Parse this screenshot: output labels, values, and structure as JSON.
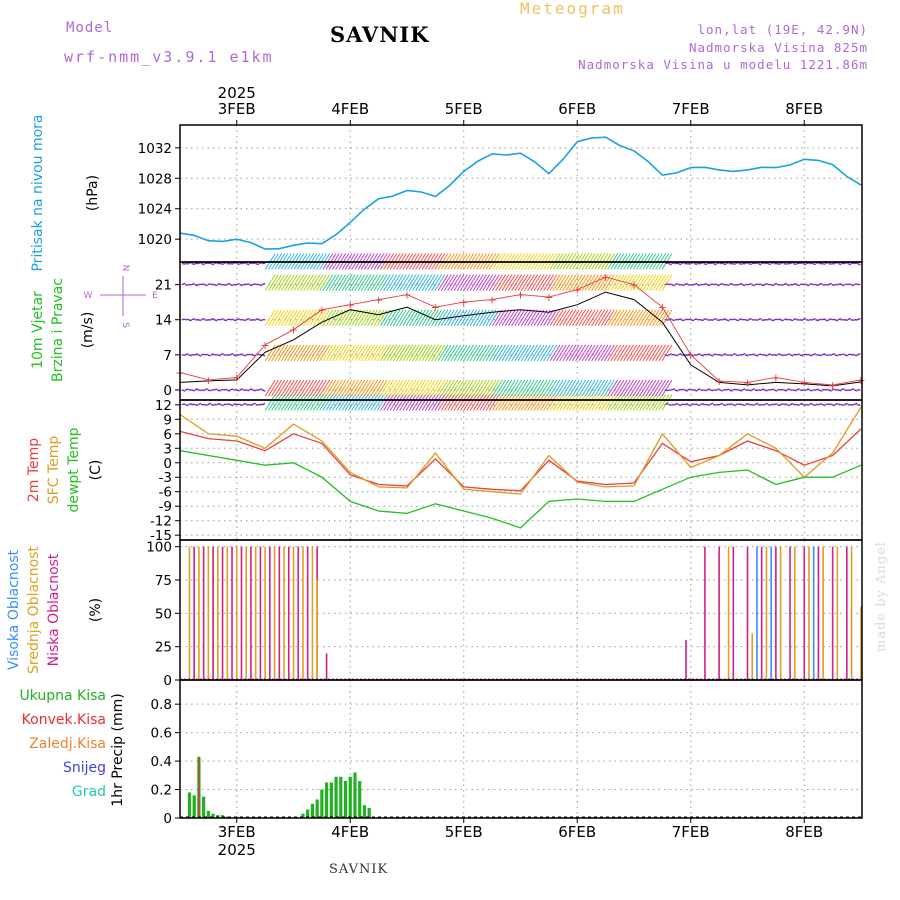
{
  "header": {
    "model_label": "Model",
    "model_name": "wrf-nmm_v3.9.1 e1km",
    "station": "SAVNIK",
    "meteogram": "Meteogram",
    "lonlat": "lon,lat (19E, 42.9N)",
    "altitude": "Nadmorska Visina 825m",
    "model_altitude": "Nadmorska Visina u modelu 1221.86m"
  },
  "footer": {
    "station": "SAVNIK",
    "credit": "made by Angel"
  },
  "colors": {
    "pressure": "#1aa0e6",
    "wind_avg": "#000000",
    "wind_gust": "#e83838",
    "temp_2m": "#e84040",
    "temp_sfc": "#e09a20",
    "dewpoint": "#22c022",
    "cloud_high": "#3c8cff",
    "cloud_mid": "#e0a020",
    "cloud_low": "#d0208a",
    "precip_total": "#22b022",
    "precip_conv": "#e83030",
    "axis_label_purple": "#b067d8"
  },
  "time_axis": {
    "year": "2025",
    "dates": [
      "3FEB",
      "4FEB",
      "5FEB",
      "6FEB",
      "7FEB",
      "8FEB"
    ]
  },
  "chart_data": [
    {
      "type": "line",
      "panel": "pressure",
      "ylabels": [
        "Pritisak na nivou mora"
      ],
      "unit": "(hPa)",
      "yticks": [
        1020,
        1024,
        1028,
        1032
      ],
      "ylim": [
        1017,
        1035
      ],
      "x": [
        "2025-02-02T12",
        "2025-02-02T18",
        "2025-02-03T00",
        "2025-02-03T06",
        "2025-02-03T12",
        "2025-02-03T18",
        "2025-02-04T00",
        "2025-02-04T06",
        "2025-02-04T12",
        "2025-02-04T18",
        "2025-02-05T00",
        "2025-02-05T06",
        "2025-02-05T12",
        "2025-02-05T18",
        "2025-02-06T00",
        "2025-02-06T06",
        "2025-02-06T12",
        "2025-02-06T18",
        "2025-02-07T00",
        "2025-02-07T06",
        "2025-02-07T12",
        "2025-02-07T18",
        "2025-02-08T00",
        "2025-02-08T06",
        "2025-02-08T12"
      ],
      "series": [
        {
          "values": [
            1020.8,
            1019.8,
            1020.0,
            1018.7,
            1019.2,
            1019.4,
            1022.2,
            1025.3,
            1026.4,
            1025.6,
            1028.9,
            1031.2,
            1031.3,
            1028.6,
            1032.8,
            1033.4,
            1031.6,
            1028.4,
            1029.4,
            1029.1,
            1029.1,
            1029.4,
            1030.5,
            1029.8,
            1027.1
          ]
        }
      ]
    },
    {
      "type": "line",
      "panel": "wind",
      "ylabels": [
        "10m Vjetar",
        "Brzina i Pravac"
      ],
      "unit": "(m/s)",
      "yticks": [
        0,
        7,
        14,
        21
      ],
      "ylim": [
        -2,
        25.5
      ],
      "compass": {
        "n": "N",
        "w": "W",
        "e": "E",
        "s": "S"
      },
      "x": [
        "2025-02-02T12",
        "2025-02-02T18",
        "2025-02-03T00",
        "2025-02-03T06",
        "2025-02-03T12",
        "2025-02-03T18",
        "2025-02-04T00",
        "2025-02-04T06",
        "2025-02-04T12",
        "2025-02-04T18",
        "2025-02-05T00",
        "2025-02-05T06",
        "2025-02-05T12",
        "2025-02-05T18",
        "2025-02-06T00",
        "2025-02-06T06",
        "2025-02-06T12",
        "2025-02-06T18",
        "2025-02-07T00",
        "2025-02-07T06",
        "2025-02-07T12",
        "2025-02-07T18",
        "2025-02-08T00",
        "2025-02-08T06",
        "2025-02-08T12"
      ],
      "series": [
        {
          "name": "avg",
          "values": [
            1.5,
            1.8,
            2.0,
            7.5,
            10.0,
            13.5,
            16.0,
            15.0,
            16.5,
            14.0,
            14.8,
            15.5,
            16.0,
            15.5,
            17.0,
            19.5,
            18.0,
            13.5,
            5.0,
            1.5,
            1.0,
            1.5,
            1.2,
            0.8,
            1.6
          ]
        },
        {
          "name": "gust",
          "values": [
            3.5,
            2.0,
            2.5,
            9.0,
            12.0,
            16.0,
            17.0,
            18.0,
            19.0,
            16.5,
            17.5,
            18.0,
            19.0,
            18.5,
            20.0,
            22.5,
            21.0,
            16.5,
            7.0,
            1.8,
            1.5,
            2.5,
            1.5,
            1.0,
            2.0
          ]
        }
      ]
    },
    {
      "type": "line",
      "panel": "temperature",
      "ylabels": [
        "2m Temp",
        "SFC Temp",
        "dewpt Temp"
      ],
      "unit": "(C)",
      "yticks": [
        -15,
        -12,
        -9,
        -6,
        -3,
        0,
        3,
        6,
        9,
        12
      ],
      "ylim": [
        -16,
        13
      ],
      "x": [
        "2025-02-02T12",
        "2025-02-02T18",
        "2025-02-03T00",
        "2025-02-03T06",
        "2025-02-03T12",
        "2025-02-03T18",
        "2025-02-04T00",
        "2025-02-04T06",
        "2025-02-04T12",
        "2025-02-04T18",
        "2025-02-05T00",
        "2025-02-05T06",
        "2025-02-05T12",
        "2025-02-05T18",
        "2025-02-06T00",
        "2025-02-06T06",
        "2025-02-06T12",
        "2025-02-06T18",
        "2025-02-07T00",
        "2025-02-07T06",
        "2025-02-07T12",
        "2025-02-07T18",
        "2025-02-08T00",
        "2025-02-08T06",
        "2025-02-08T12"
      ],
      "series": [
        {
          "name": "2m Temp",
          "values": [
            6.5,
            5.0,
            4.5,
            2.5,
            6.0,
            4.0,
            -2.5,
            -4.5,
            -4.8,
            0.8,
            -5.0,
            -5.5,
            -5.8,
            0.5,
            -3.8,
            -4.5,
            -4.2,
            4.0,
            0.2,
            1.5,
            4.5,
            2.5,
            -0.5,
            1.5,
            7.0
          ]
        },
        {
          "name": "SFC Temp",
          "values": [
            10.0,
            6.0,
            5.5,
            3.0,
            8.0,
            4.5,
            -2.0,
            -5.0,
            -5.2,
            2.0,
            -5.5,
            -6.0,
            -6.5,
            1.5,
            -4.0,
            -5.0,
            -4.8,
            6.0,
            -1.0,
            1.5,
            6.0,
            3.0,
            -3.0,
            2.0,
            11.5
          ]
        },
        {
          "name": "dewpt Temp",
          "values": [
            2.5,
            1.5,
            0.5,
            -0.5,
            0.0,
            -3.0,
            -8.0,
            -10.0,
            -10.5,
            -8.5,
            -10.0,
            -11.5,
            -13.5,
            -8.0,
            -7.5,
            -8.0,
            -8.0,
            -5.5,
            -3.0,
            -2.0,
            -1.5,
            -4.5,
            -3.0,
            -3.0,
            -0.5
          ]
        }
      ]
    },
    {
      "type": "bar",
      "panel": "clouds",
      "ylabels": [
        "Visoka Oblacnost",
        "Srednja Oblacnost",
        "Niska Oblacnost"
      ],
      "unit": "(%)",
      "yticks": [
        0,
        25,
        50,
        75,
        100
      ],
      "ylim": [
        0,
        105
      ],
      "series": [
        {
          "name": "Niska Oblacnost",
          "x": [
            "2025-02-02T15",
            "2025-02-02T17",
            "2025-02-02T19",
            "2025-02-02T21",
            "2025-02-02T23",
            "2025-02-03T01",
            "2025-02-03T03",
            "2025-02-03T05",
            "2025-02-03T07",
            "2025-02-03T09",
            "2025-02-03T11",
            "2025-02-03T13",
            "2025-02-03T15",
            "2025-02-03T17",
            "2025-02-03T19",
            "2025-02-06T23",
            "2025-02-07T03",
            "2025-02-07T06",
            "2025-02-07T09",
            "2025-02-07T12",
            "2025-02-07T15",
            "2025-02-07T18",
            "2025-02-07T21",
            "2025-02-08T00",
            "2025-02-08T03",
            "2025-02-08T06",
            "2025-02-08T09"
          ],
          "values": [
            100,
            100,
            100,
            100,
            100,
            100,
            100,
            100,
            100,
            100,
            100,
            100,
            100,
            100,
            20,
            30,
            100,
            100,
            100,
            100,
            100,
            100,
            100,
            100,
            100,
            100,
            100
          ]
        },
        {
          "name": "Srednja Oblacnost",
          "x": [
            "2025-02-02T14",
            "2025-02-02T16",
            "2025-02-02T18",
            "2025-02-02T20",
            "2025-02-02T22",
            "2025-02-03T00",
            "2025-02-03T02",
            "2025-02-03T04",
            "2025-02-03T06",
            "2025-02-03T08",
            "2025-02-03T10",
            "2025-02-03T12",
            "2025-02-03T14",
            "2025-02-03T16",
            "2025-02-03T17",
            "2025-02-07T08",
            "2025-02-07T13",
            "2025-02-07T16",
            "2025-02-07T19",
            "2025-02-07T22",
            "2025-02-08T01",
            "2025-02-08T04",
            "2025-02-08T07",
            "2025-02-08T10",
            "2025-02-08T12"
          ],
          "values": [
            100,
            100,
            100,
            100,
            100,
            100,
            100,
            100,
            100,
            100,
            100,
            100,
            100,
            100,
            75,
            100,
            35,
            100,
            100,
            100,
            100,
            100,
            100,
            100,
            55
          ]
        },
        {
          "name": "Visoka Oblacnost",
          "x": [
            "2025-02-07T14",
            "2025-02-07T17",
            "2025-02-08T02"
          ],
          "values": [
            100,
            100,
            100
          ]
        }
      ]
    },
    {
      "type": "bar",
      "panel": "precip",
      "ylabels": [
        "1hr Precip (mm)"
      ],
      "unit": "",
      "legend": [
        "Ukupna Kisa",
        "Konvek.Kisa",
        "Zaledj.Kisa",
        "Snijeg",
        "Grad"
      ],
      "yticks": [
        0,
        0.2,
        0.4,
        0.6,
        0.8
      ],
      "ylim": [
        0,
        0.97
      ],
      "series": [
        {
          "name": "Ukupna Kisa",
          "x": [
            "2025-02-02T14",
            "2025-02-02T15",
            "2025-02-02T16",
            "2025-02-02T17",
            "2025-02-02T18",
            "2025-02-02T19",
            "2025-02-02T20",
            "2025-02-02T21",
            "2025-02-02T22",
            "2025-02-03T00",
            "2025-02-03T14",
            "2025-02-03T15",
            "2025-02-03T16",
            "2025-02-03T17",
            "2025-02-03T18",
            "2025-02-03T19",
            "2025-02-03T20",
            "2025-02-03T21",
            "2025-02-03T22",
            "2025-02-03T23",
            "2025-02-04T00",
            "2025-02-04T01",
            "2025-02-04T02",
            "2025-02-04T03",
            "2025-02-04T04"
          ],
          "values": [
            0.18,
            0.16,
            0.43,
            0.15,
            0.05,
            0.03,
            0.02,
            0.02,
            0.01,
            0.01,
            0.03,
            0.06,
            0.1,
            0.13,
            0.2,
            0.25,
            0.25,
            0.29,
            0.29,
            0.26,
            0.29,
            0.32,
            0.26,
            0.09,
            0.07
          ]
        },
        {
          "name": "Konvek.Kisa",
          "x": [
            "2025-02-02T16"
          ],
          "values": [
            0.42
          ]
        }
      ]
    }
  ]
}
